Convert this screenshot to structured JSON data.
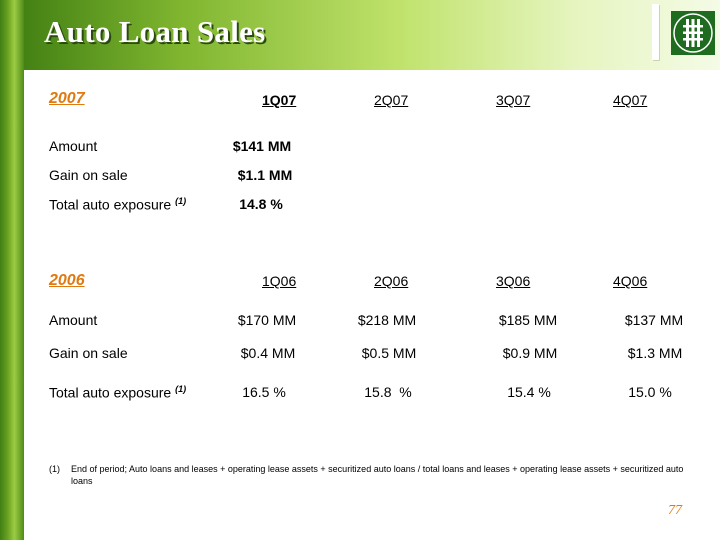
{
  "title": "Auto Loan Sales",
  "colors": {
    "accent": "#e07a10",
    "band": "#7fb52f",
    "logo": "#1f6b1f"
  },
  "logo_icon": "bank-logo-icon",
  "section_2007": {
    "year": "2007",
    "quarters": [
      "1Q07",
      "2Q07",
      "3Q07",
      "4Q07"
    ],
    "rows": [
      {
        "label": "Amount",
        "sup": "",
        "values": [
          "$141 MM",
          "",
          "",
          ""
        ]
      },
      {
        "label": "Gain on sale",
        "sup": "",
        "values": [
          "$1.1 MM",
          "",
          "",
          ""
        ]
      },
      {
        "label": "Total auto exposure ",
        "sup": "(1)",
        "values": [
          "14.8 %",
          "",
          "",
          ""
        ]
      }
    ]
  },
  "section_2006": {
    "year": "2006",
    "quarters": [
      "1Q06",
      "2Q06",
      "3Q06",
      "4Q06"
    ],
    "rows": [
      {
        "label": "Amount",
        "sup": "",
        "values": [
          "$170 MM",
          "$218 MM",
          "$185 MM",
          "$137 MM"
        ]
      },
      {
        "label": "Gain on sale",
        "sup": "",
        "values": [
          "$0.4 MM",
          "$0.5 MM",
          "$0.9 MM",
          "$1.3 MM"
        ]
      },
      {
        "label": "Total auto exposure ",
        "sup": "(1)",
        "values": [
          "16.5 %",
          "15.8  %",
          "15.4 %",
          "15.0 %"
        ]
      }
    ]
  },
  "footnote": {
    "number": "(1)",
    "text": "End of period; Auto loans and leases + operating lease assets + securitized auto loans / total loans and leases + operating lease assets + securitized auto loans"
  },
  "page_number": "77"
}
